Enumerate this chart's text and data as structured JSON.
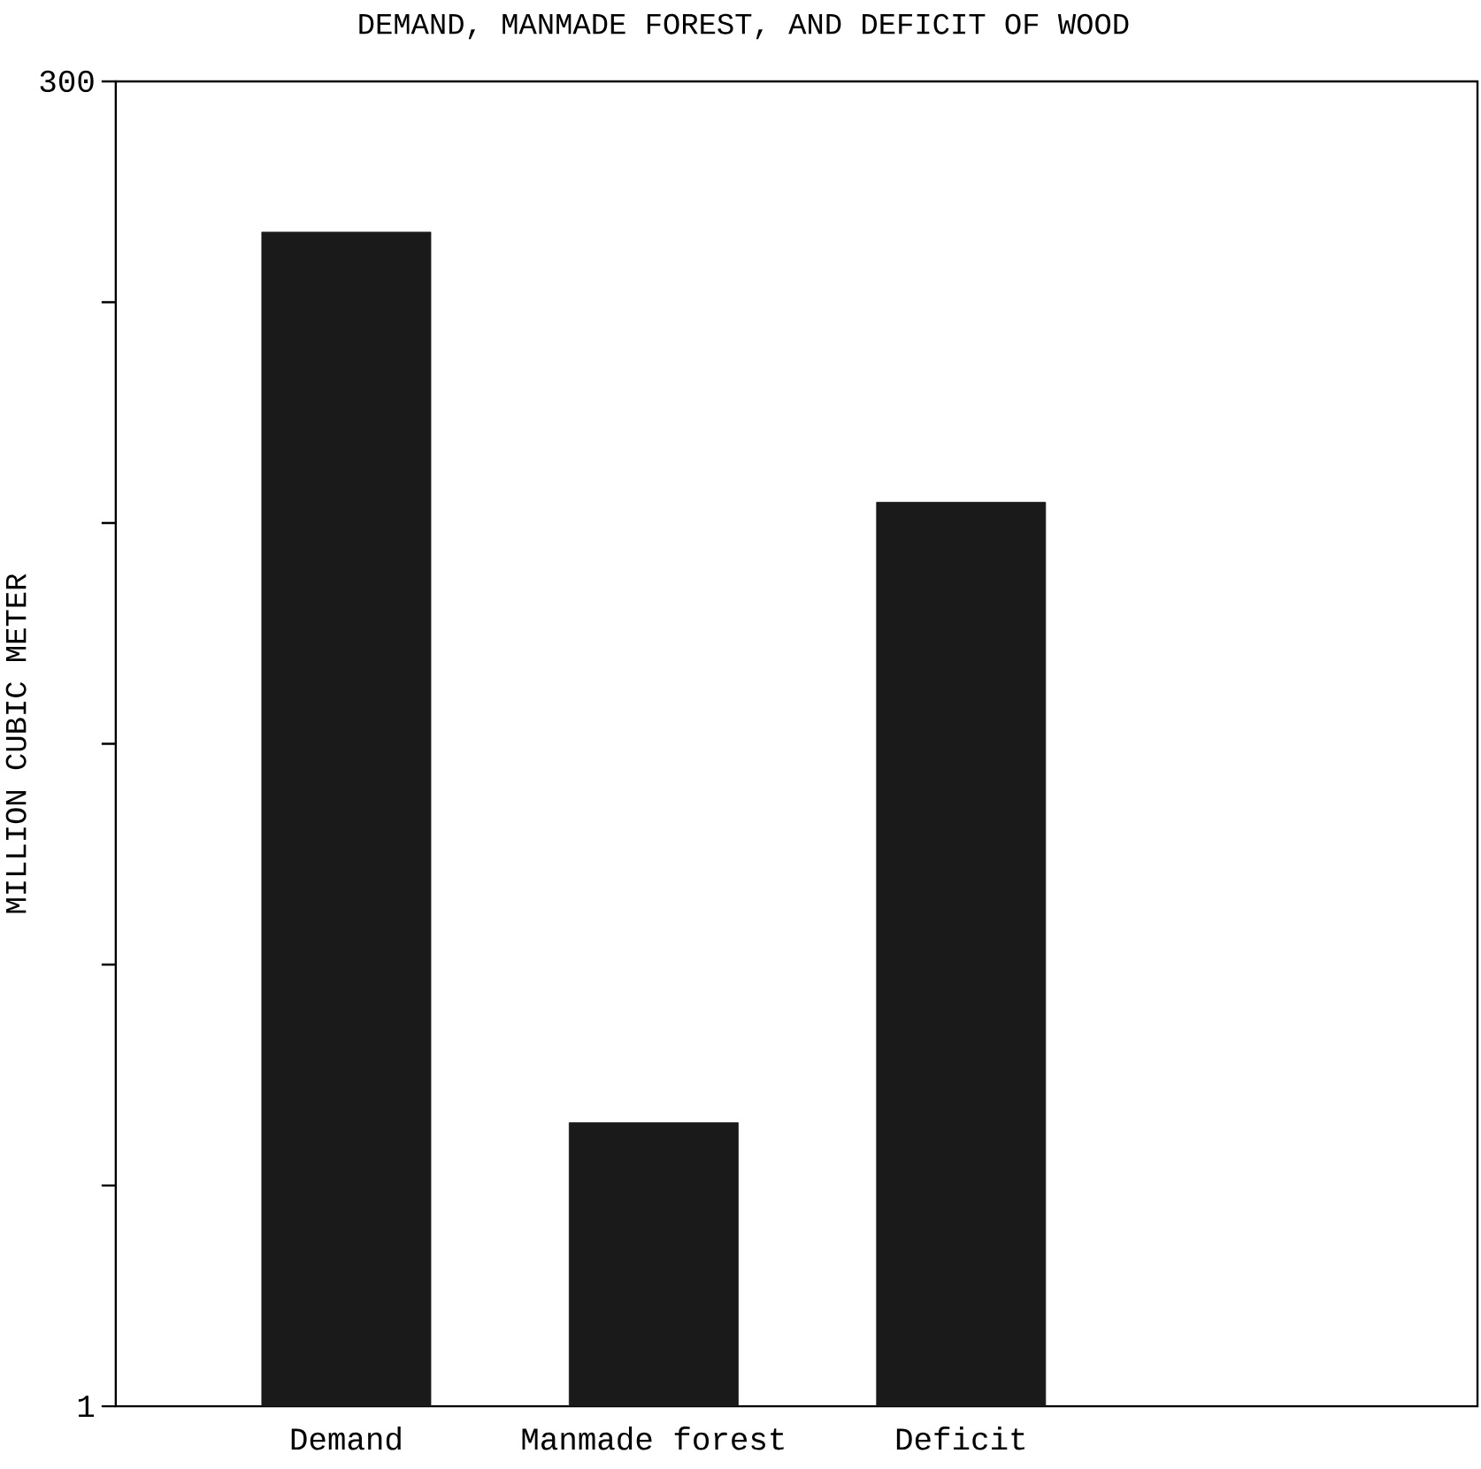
{
  "chart_data": {
    "type": "bar",
    "title": "DEMAND, MANMADE FOREST, AND DEFICIT OF WOOD",
    "ylabel": "MILLION CUBIC METER",
    "categories": [
      "Demand",
      "Manmade forest",
      "Deficit"
    ],
    "values": [
      266,
      65,
      205
    ],
    "color": "#1a1a1a",
    "ylim": [
      1,
      300
    ],
    "yticks": [
      1,
      300
    ],
    "grid": false
  }
}
